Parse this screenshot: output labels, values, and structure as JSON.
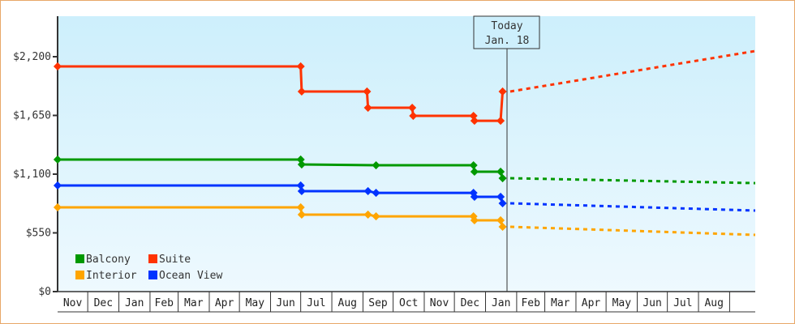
{
  "chart_data": {
    "type": "line",
    "title": "",
    "xlabel": "",
    "ylabel": "",
    "ylim": [
      0,
      2500
    ],
    "y_ticks": [
      {
        "label": "$0",
        "value": 0
      },
      {
        "label": "$550",
        "value": 550
      },
      {
        "label": "$1,100",
        "value": 1100
      },
      {
        "label": "$1,650",
        "value": 1650
      },
      {
        "label": "$2,200",
        "value": 2200
      }
    ],
    "x_months": [
      "Nov",
      "Dec",
      "Jan",
      "Feb",
      "Mar",
      "Apr",
      "May",
      "Jun",
      "Jul",
      "Aug",
      "Sep",
      "Oct",
      "Nov",
      "Dec",
      "Jan",
      "Feb",
      "Mar",
      "Apr",
      "May",
      "Jun",
      "Jul",
      "Aug"
    ],
    "grid": false,
    "legend_position": "bottom-left inside",
    "today_marker": {
      "line1": "Today",
      "line2": "Jan. 18"
    },
    "legend": [
      {
        "name": "Balcony",
        "color": "#009900"
      },
      {
        "name": "Suite",
        "color": "#ff3300"
      },
      {
        "name": "Interior",
        "color": "#ffa500"
      },
      {
        "name": "Ocean View",
        "color": "#0033ff"
      }
    ],
    "series": [
      {
        "name": "Suite",
        "color": "#ff3300",
        "history": [
          {
            "date": "Nov 1",
            "value": 2109
          },
          {
            "date": "Jul 1",
            "value": 2109
          },
          {
            "date": "Jul 2",
            "value": 1874
          },
          {
            "date": "Sep 5",
            "value": 1874
          },
          {
            "date": "Sep 6",
            "value": 1722
          },
          {
            "date": "Oct 20",
            "value": 1722
          },
          {
            "date": "Oct 21",
            "value": 1646
          },
          {
            "date": "Dec 20",
            "value": 1646
          },
          {
            "date": "Dec 21",
            "value": 1600
          },
          {
            "date": "Jan 16",
            "value": 1600
          },
          {
            "date": "Jan 18",
            "value": 1874
          }
        ],
        "forecast": [
          {
            "date": "Jan 18",
            "value": 1874
          },
          {
            "date": "Aug 31",
            "value": 2253
          }
        ]
      },
      {
        "name": "Balcony",
        "color": "#009900",
        "history": [
          {
            "date": "Nov 1",
            "value": 1237
          },
          {
            "date": "Jul 1",
            "value": 1237
          },
          {
            "date": "Jul 2",
            "value": 1191
          },
          {
            "date": "Sep 14",
            "value": 1183
          },
          {
            "date": "Dec 20",
            "value": 1183
          },
          {
            "date": "Dec 21",
            "value": 1123
          },
          {
            "date": "Jan 16",
            "value": 1123
          },
          {
            "date": "Jan 18",
            "value": 1062
          }
        ],
        "forecast": [
          {
            "date": "Jan 18",
            "value": 1062
          },
          {
            "date": "Aug 31",
            "value": 1016
          }
        ]
      },
      {
        "name": "Ocean View",
        "color": "#0033ff",
        "history": [
          {
            "date": "Nov 1",
            "value": 994
          },
          {
            "date": "Jul 1",
            "value": 994
          },
          {
            "date": "Jul 2",
            "value": 941
          },
          {
            "date": "Sep 6",
            "value": 941
          },
          {
            "date": "Sep 14",
            "value": 925
          },
          {
            "date": "Dec 20",
            "value": 925
          },
          {
            "date": "Dec 21",
            "value": 888
          },
          {
            "date": "Jan 16",
            "value": 888
          },
          {
            "date": "Jan 18",
            "value": 827
          }
        ],
        "forecast": [
          {
            "date": "Jan 18",
            "value": 827
          },
          {
            "date": "Aug 31",
            "value": 759
          }
        ]
      },
      {
        "name": "Interior",
        "color": "#ffa500",
        "history": [
          {
            "date": "Nov 1",
            "value": 789
          },
          {
            "date": "Jul 1",
            "value": 789
          },
          {
            "date": "Jul 2",
            "value": 721
          },
          {
            "date": "Sep 6",
            "value": 721
          },
          {
            "date": "Sep 14",
            "value": 705
          },
          {
            "date": "Dec 20",
            "value": 705
          },
          {
            "date": "Dec 21",
            "value": 668
          },
          {
            "date": "Jan 16",
            "value": 668
          },
          {
            "date": "Jan 18",
            "value": 607
          }
        ],
        "forecast": [
          {
            "date": "Jan 18",
            "value": 607
          },
          {
            "date": "Aug 31",
            "value": 531
          }
        ]
      }
    ]
  },
  "colors": {
    "frame_border": "#e8a868",
    "plot_bg_top": "#cdeffc",
    "plot_bg_bottom": "#eef9fe",
    "axis": "#333333"
  }
}
